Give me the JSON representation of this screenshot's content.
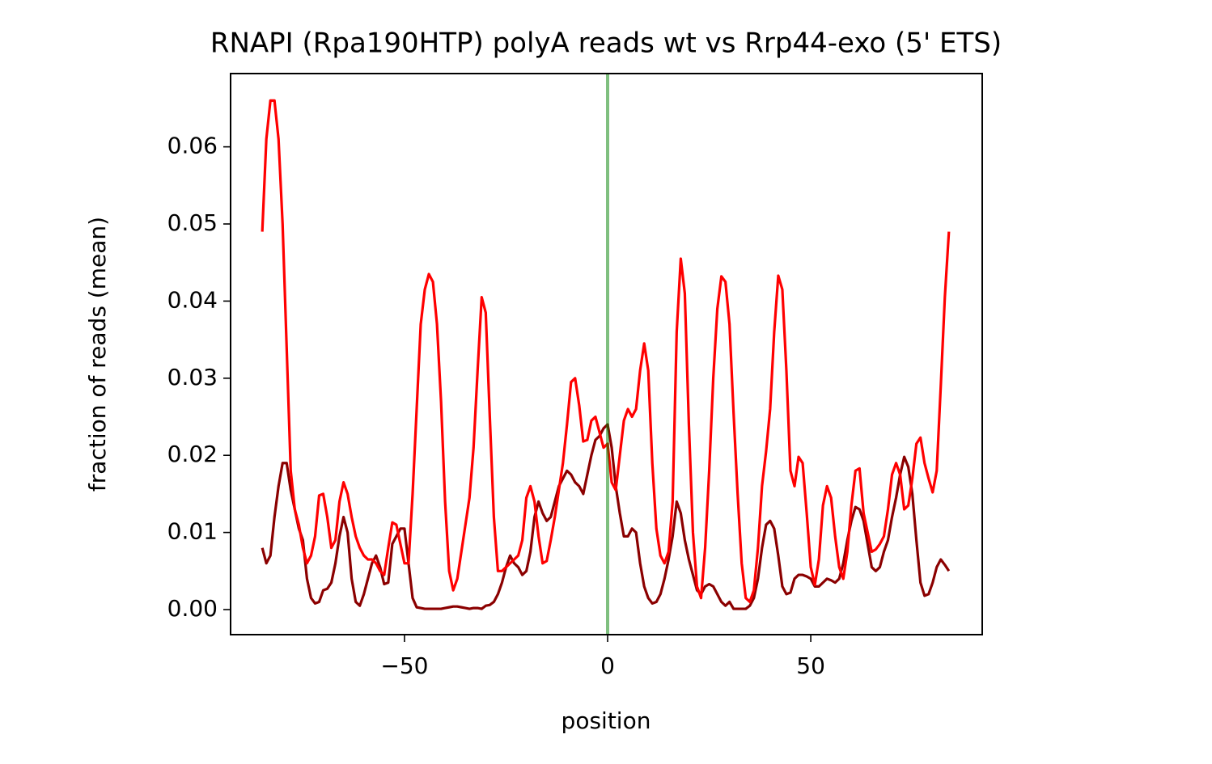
{
  "chart_data": {
    "type": "line",
    "title": "RNAPI (Rpa190HTP) polyA reads wt vs Rrp44-exo (5' ETS)",
    "xlabel": "position",
    "ylabel": "fraction of reads (mean)",
    "x": [
      -85,
      -84,
      -83,
      -82,
      -81,
      -80,
      -79,
      -78,
      -77,
      -76,
      -75,
      -74,
      -73,
      -72,
      -71,
      -70,
      -69,
      -68,
      -67,
      -66,
      -65,
      -64,
      -63,
      -62,
      -61,
      -60,
      -59,
      -58,
      -57,
      -56,
      -55,
      -54,
      -53,
      -52,
      -51,
      -50,
      -49,
      -48,
      -47,
      -46,
      -45,
      -44,
      -43,
      -42,
      -41,
      -40,
      -39,
      -38,
      -37,
      -36,
      -35,
      -34,
      -33,
      -32,
      -31,
      -30,
      -29,
      -28,
      -27,
      -26,
      -25,
      -24,
      -23,
      -22,
      -21,
      -20,
      -19,
      -18,
      -17,
      -16,
      -15,
      -14,
      -13,
      -12,
      -11,
      -10,
      -9,
      -8,
      -7,
      -6,
      -5,
      -4,
      -3,
      -2,
      -1,
      0,
      1,
      2,
      3,
      4,
      5,
      6,
      7,
      8,
      9,
      10,
      11,
      12,
      13,
      14,
      15,
      16,
      17,
      18,
      19,
      20,
      21,
      22,
      23,
      24,
      25,
      26,
      27,
      28,
      29,
      30,
      31,
      32,
      33,
      34,
      35,
      36,
      37,
      38,
      39,
      40,
      41,
      42,
      43,
      44,
      45,
      46,
      47,
      48,
      49,
      50,
      51,
      52,
      53,
      54,
      55,
      56,
      57,
      58,
      59,
      60,
      61,
      62,
      63,
      64,
      65,
      66,
      67,
      68,
      69,
      70,
      71,
      72,
      73,
      74,
      75,
      76,
      77,
      78,
      79,
      80,
      81,
      82,
      83,
      84
    ],
    "series": [
      {
        "color": "#8b0000",
        "values": [
          0.008,
          0.006,
          0.007,
          0.012,
          0.016,
          0.019,
          0.019,
          0.0155,
          0.013,
          0.0105,
          0.009,
          0.004,
          0.0015,
          0.0008,
          0.001,
          0.0025,
          0.0027,
          0.0035,
          0.006,
          0.0095,
          0.012,
          0.01,
          0.004,
          0.001,
          0.0005,
          0.002,
          0.004,
          0.006,
          0.007,
          0.0055,
          0.0033,
          0.0035,
          0.0085,
          0.0095,
          0.0105,
          0.0105,
          0.006,
          0.0015,
          0.0003,
          0.0002,
          0.0001,
          0.0001,
          0.0001,
          0.0001,
          0.0001,
          0.0002,
          0.0003,
          0.0004,
          0.0004,
          0.0003,
          0.0002,
          0.0001,
          0.0002,
          0.0002,
          0.0001,
          0.0005,
          0.0006,
          0.001,
          0.002,
          0.0035,
          0.0055,
          0.007,
          0.006,
          0.0055,
          0.0045,
          0.005,
          0.0075,
          0.012,
          0.014,
          0.0125,
          0.0115,
          0.012,
          0.014,
          0.016,
          0.017,
          0.018,
          0.0175,
          0.0165,
          0.016,
          0.015,
          0.0175,
          0.02,
          0.022,
          0.0225,
          0.0235,
          0.024,
          0.021,
          0.016,
          0.0125,
          0.0095,
          0.0095,
          0.0105,
          0.01,
          0.006,
          0.003,
          0.0015,
          0.0008,
          0.001,
          0.002,
          0.004,
          0.0065,
          0.0095,
          0.014,
          0.0125,
          0.009,
          0.0065,
          0.0045,
          0.0025,
          0.002,
          0.003,
          0.0033,
          0.003,
          0.002,
          0.001,
          0.0005,
          0.001,
          0.0001,
          0.0001,
          0.0001,
          0.0001,
          0.0005,
          0.0015,
          0.004,
          0.008,
          0.011,
          0.0115,
          0.0105,
          0.007,
          0.003,
          0.002,
          0.0022,
          0.004,
          0.0045,
          0.0045,
          0.0043,
          0.004,
          0.003,
          0.003,
          0.0035,
          0.004,
          0.0038,
          0.0035,
          0.004,
          0.006,
          0.009,
          0.0115,
          0.0133,
          0.013,
          0.0115,
          0.0085,
          0.0055,
          0.005,
          0.0055,
          0.0075,
          0.009,
          0.012,
          0.0145,
          0.0175,
          0.0198,
          0.0185,
          0.015,
          0.009,
          0.0035,
          0.0018,
          0.002,
          0.0035,
          0.0055,
          0.0065,
          0.0058,
          0.005
        ]
      },
      {
        "color": "#ff0000",
        "values": [
          0.049,
          0.061,
          0.066,
          0.066,
          0.061,
          0.05,
          0.034,
          0.018,
          0.013,
          0.011,
          0.008,
          0.006,
          0.007,
          0.0095,
          0.0148,
          0.015,
          0.012,
          0.008,
          0.009,
          0.014,
          0.0165,
          0.015,
          0.012,
          0.0095,
          0.008,
          0.007,
          0.0065,
          0.0065,
          0.006,
          0.005,
          0.0045,
          0.008,
          0.0113,
          0.011,
          0.0085,
          0.006,
          0.006,
          0.015,
          0.026,
          0.037,
          0.0415,
          0.0435,
          0.0425,
          0.037,
          0.027,
          0.014,
          0.005,
          0.0025,
          0.004,
          0.0075,
          0.011,
          0.0145,
          0.021,
          0.031,
          0.0405,
          0.0385,
          0.025,
          0.012,
          0.005,
          0.005,
          0.0055,
          0.006,
          0.0065,
          0.007,
          0.009,
          0.0145,
          0.016,
          0.014,
          0.0095,
          0.006,
          0.0063,
          0.009,
          0.012,
          0.0155,
          0.019,
          0.024,
          0.0295,
          0.03,
          0.0265,
          0.0218,
          0.022,
          0.0245,
          0.025,
          0.023,
          0.021,
          0.0215,
          0.0165,
          0.0155,
          0.02,
          0.0245,
          0.026,
          0.025,
          0.026,
          0.031,
          0.0345,
          0.031,
          0.019,
          0.0105,
          0.007,
          0.006,
          0.0075,
          0.014,
          0.036,
          0.0455,
          0.041,
          0.024,
          0.01,
          0.003,
          0.0015,
          0.008,
          0.018,
          0.03,
          0.039,
          0.0432,
          0.0425,
          0.037,
          0.0255,
          0.015,
          0.006,
          0.0015,
          0.001,
          0.0025,
          0.008,
          0.016,
          0.0205,
          0.026,
          0.036,
          0.0433,
          0.0415,
          0.031,
          0.018,
          0.016,
          0.0198,
          0.019,
          0.0125,
          0.0055,
          0.0032,
          0.0065,
          0.0135,
          0.016,
          0.0145,
          0.0095,
          0.0055,
          0.004,
          0.0075,
          0.0135,
          0.018,
          0.0183,
          0.0125,
          0.01,
          0.0075,
          0.0078,
          0.0085,
          0.0095,
          0.013,
          0.0175,
          0.019,
          0.0175,
          0.013,
          0.0135,
          0.017,
          0.0215,
          0.0223,
          0.019,
          0.017,
          0.0152,
          0.018,
          0.029,
          0.0405,
          0.049
        ]
      }
    ],
    "vlines": [
      {
        "x": 0,
        "color": "#008000"
      }
    ],
    "xlim": [
      -92.8,
      92.2
    ],
    "ylim": [
      -0.00325,
      0.0695
    ],
    "xticks": [
      {
        "value": -50,
        "label": "−50"
      },
      0,
      50
    ],
    "yticks": [
      {
        "value": 0,
        "label": "0.00"
      },
      0.01,
      0.02,
      0.03,
      0.04,
      0.05,
      0.06
    ],
    "grid": false
  }
}
